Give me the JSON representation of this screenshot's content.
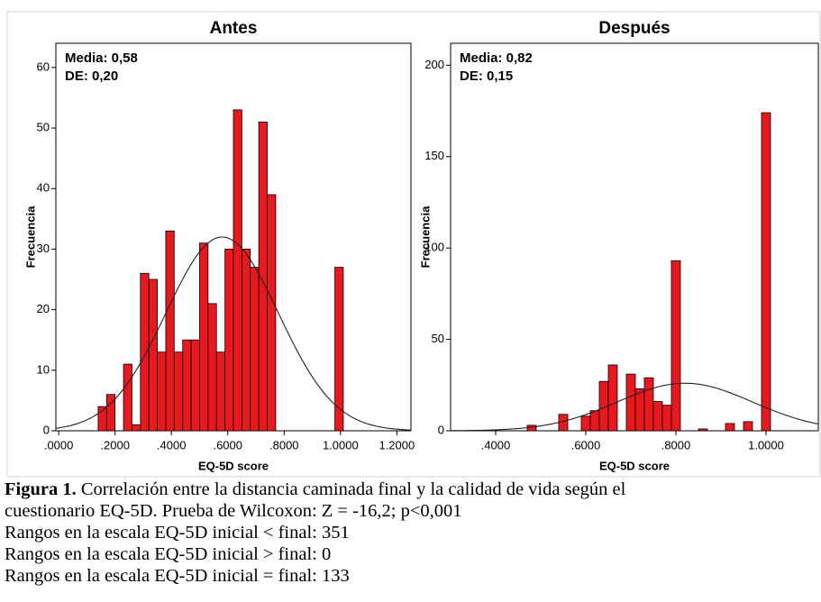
{
  "chart_data": [
    {
      "type": "histogram",
      "title": "Antes",
      "xlabel": "EQ-5D score",
      "ylabel": "Frecuencia",
      "annotations": [
        "Media: 0,58",
        "DE: 0,20"
      ],
      "bins": [
        0.14,
        0.17,
        0.2,
        0.23,
        0.26,
        0.29,
        0.32,
        0.35,
        0.38,
        0.41,
        0.44,
        0.47,
        0.5,
        0.53,
        0.56,
        0.59,
        0.62,
        0.65,
        0.68,
        0.71,
        0.74,
        0.77,
        0.98,
        1.01
      ],
      "values": [
        4,
        6,
        0,
        11,
        1,
        26,
        25,
        13,
        33,
        13,
        15,
        15,
        31,
        21,
        13,
        30,
        53,
        30,
        27,
        51,
        39,
        0,
        27
      ],
      "color": "#e8191e",
      "normal_curve": {
        "mean": 0.58,
        "sd": 0.2,
        "peak": 32
      },
      "xlim": [
        -0.01,
        1.25
      ],
      "ylim": [
        0,
        64
      ],
      "xticks": [
        {
          "value": 0,
          "label": ".0000"
        },
        {
          "value": 0.2,
          "label": ".2000"
        },
        {
          "value": 0.4,
          "label": ".4000"
        },
        {
          "value": 0.6,
          "label": ".6000"
        },
        {
          "value": 0.8,
          "label": ".8000"
        },
        {
          "value": 1,
          "label": "1.0000"
        },
        {
          "value": 1.2,
          "label": "1.2000"
        }
      ],
      "yticks": [
        0,
        10,
        20,
        30,
        40,
        50,
        60
      ]
    },
    {
      "type": "histogram",
      "title": "Después",
      "xlabel": "EQ-5D score",
      "ylabel": "Frecuencia",
      "annotations": [
        "Media: 0,82",
        "DE: 0,15"
      ],
      "bins": [
        0.47,
        0.49,
        0.54,
        0.56,
        0.59,
        0.61,
        0.63,
        0.65,
        0.67,
        0.69,
        0.71,
        0.73,
        0.75,
        0.77,
        0.79,
        0.81,
        0.85,
        0.87,
        0.91,
        0.93,
        0.95,
        0.97,
        0.99,
        1.01
      ],
      "values": [
        3,
        0,
        9,
        0,
        8,
        11,
        27,
        36,
        0,
        31,
        23,
        29,
        16,
        14,
        93,
        0,
        1,
        0,
        4,
        0,
        5,
        0,
        174
      ],
      "color": "#e8191e",
      "normal_curve": {
        "mean": 0.82,
        "sd": 0.15,
        "peak": 26
      },
      "xlim": [
        0.3,
        1.116
      ],
      "ylim": [
        0,
        212
      ],
      "xticks": [
        {
          "value": 0.4,
          "label": ".4000"
        },
        {
          "value": 0.6,
          "label": ".6000"
        },
        {
          "value": 0.8,
          "label": ".8000"
        },
        {
          "value": 1,
          "label": "1.0000"
        }
      ],
      "yticks": [
        0,
        50,
        100,
        150,
        200
      ]
    }
  ],
  "caption": {
    "label": "Figura 1.",
    "text": "Correlación entre la distancia caminada final y la calidad de vida según el",
    "lines": [
      "cuestionario EQ-5D. Prueba de Wilcoxon: Z = -16,2; p<0,001",
      "Rangos en la escala EQ-5D inicial < final: 351",
      "Rangos en la escala EQ-5D inicial > final: 0",
      "Rangos en la escala EQ-5D inicial = final: 133"
    ]
  }
}
